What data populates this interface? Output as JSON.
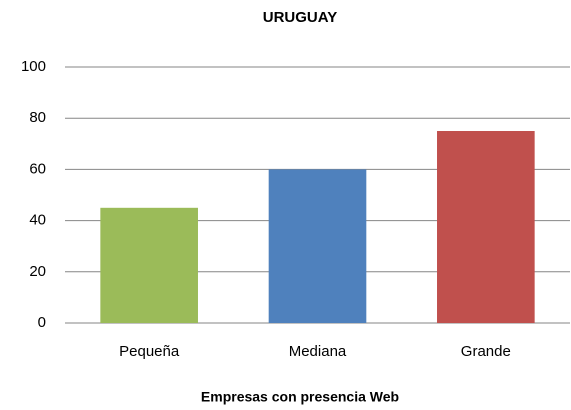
{
  "chart_data": {
    "type": "bar",
    "title": "URUGUAY",
    "x_label": "Empresas con presencia Web",
    "categories": [
      "Pequeña",
      "Mediana",
      "Grande"
    ],
    "values": [
      45,
      60,
      75
    ],
    "colors": [
      "#9bbb59",
      "#4f81bd",
      "#c0504d"
    ],
    "ylim": [
      0,
      100
    ],
    "yticks": [
      0,
      20,
      40,
      60,
      80,
      100
    ],
    "grid": true
  }
}
